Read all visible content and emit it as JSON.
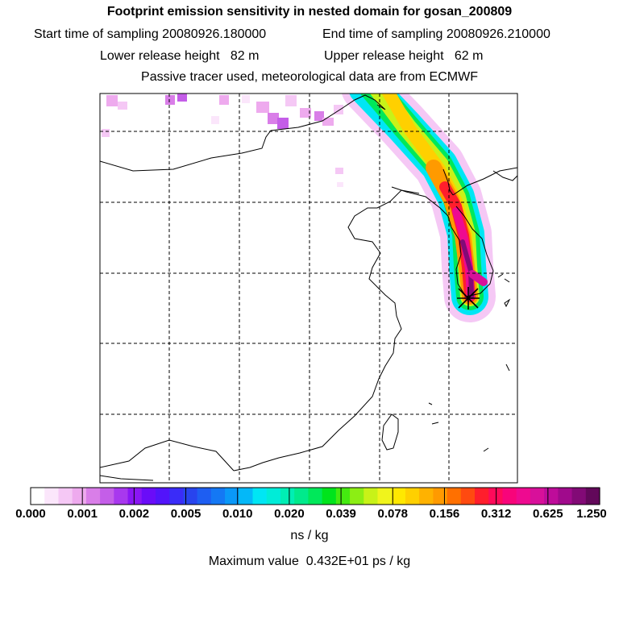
{
  "header": {
    "title": "Footprint emission sensitivity in nested domain for gosan_200809",
    "line2_left": "Start time of sampling 20080926.180000",
    "line2_right": "End time of sampling 20080926.210000",
    "line3_left": "Lower release height   82 m",
    "line3_right": "Upper release height   62 m",
    "line4": "Passive tracer used, meteorological data are from ECMWF"
  },
  "colorbar": {
    "colors": [
      "#ffffff",
      "#fbe6fb",
      "#f5c8f5",
      "#eeaaee",
      "#d97ee8",
      "#c45ee8",
      "#a838ee",
      "#8a16f4",
      "#6a0cf8",
      "#5214fa",
      "#3a2cf8",
      "#2844ee",
      "#1e5ef2",
      "#1478f4",
      "#0a98f8",
      "#04b8f8",
      "#00e6f4",
      "#00ecd8",
      "#00eeb4",
      "#00ea8c",
      "#00e85a",
      "#00e41c",
      "#44ea10",
      "#8cee14",
      "#c8f218",
      "#f0f41c",
      "#ffe800",
      "#ffd000",
      "#ffb200",
      "#ff9a00",
      "#ff7000",
      "#ff4a10",
      "#ff1e2c",
      "#ff0a5a",
      "#f8047a",
      "#ee0a90",
      "#d8109a",
      "#be0c9a",
      "#a00a8c",
      "#820a76",
      "#62085a"
    ],
    "tick_labels": [
      "0.000",
      "0.001",
      "0.002",
      "0.005",
      "0.010",
      "0.020",
      "0.039",
      "0.078",
      "0.156",
      "0.312",
      "0.625",
      "1.250"
    ],
    "units": "ns / kg"
  },
  "footer": {
    "max_value": "Maximum value  0.432E+01 ps / kg"
  }
}
